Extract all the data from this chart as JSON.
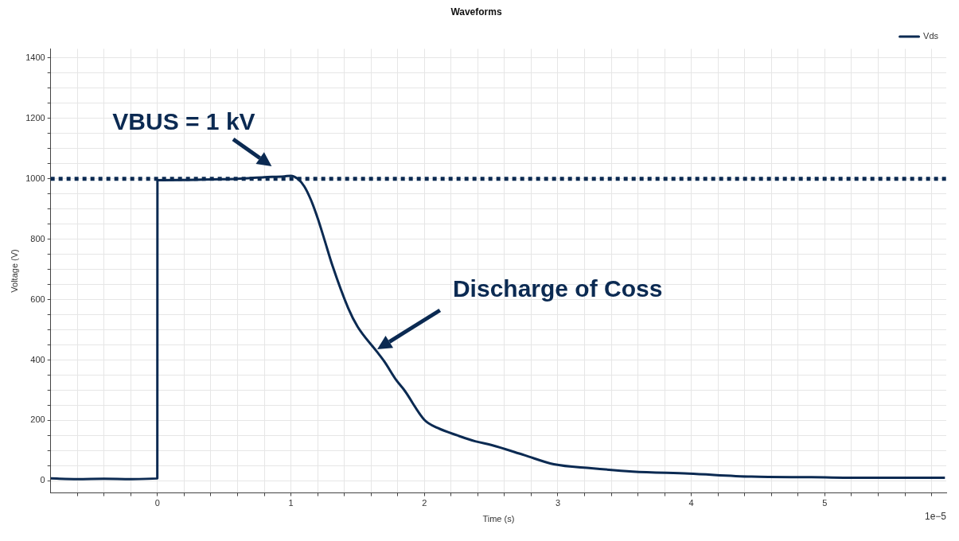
{
  "chart_data": {
    "type": "line",
    "title": "Waveforms",
    "xlabel": "Time (s)",
    "ylabel": "Voltage (V)",
    "series": [
      {
        "name": "Vds",
        "color": "#0b2a52",
        "x": [
          -0.8,
          -0.6,
          -0.4,
          -0.2,
          -0.001,
          0,
          0.2,
          0.4,
          0.6,
          0.8,
          0.95,
          1.0,
          1.05,
          1.1,
          1.15,
          1.2,
          1.25,
          1.31,
          1.43,
          1.5,
          1.64,
          1.7,
          1.79,
          1.85,
          2.0,
          2.1,
          2.25,
          2.38,
          2.5,
          2.75,
          2.97,
          3.25,
          3.56,
          3.98,
          4.45,
          4.9,
          5.34,
          5.9
        ],
        "values": [
          8,
          6,
          7,
          6,
          8,
          995,
          996,
          998,
          1000,
          1005,
          1008,
          1010,
          1000,
          975,
          930,
          870,
          800,
          714,
          571,
          510,
          430,
          395,
          333,
          300,
          202,
          175,
          150,
          131,
          119,
          85,
          55,
          42,
          31,
          24,
          14,
          12,
          10,
          10
        ]
      }
    ],
    "xlim": [
      -0.8,
      5.91
    ],
    "ylim": [
      -40,
      1430
    ],
    "xticks": [
      {
        "value": -0.6,
        "label": null
      },
      {
        "value": -0.4,
        "label": null
      },
      {
        "value": -0.2,
        "label": null
      },
      0,
      {
        "value": 0.2,
        "label": null
      },
      {
        "value": 0.4,
        "label": null
      },
      {
        "value": 0.6,
        "label": null
      },
      {
        "value": 0.8,
        "label": null
      },
      1,
      {
        "value": 1.2,
        "label": null
      },
      {
        "value": 1.4,
        "label": null
      },
      {
        "value": 1.6,
        "label": null
      },
      {
        "value": 1.8,
        "label": null
      },
      2,
      {
        "value": 2.2,
        "label": null
      },
      {
        "value": 2.4,
        "label": null
      },
      {
        "value": 2.6,
        "label": null
      },
      {
        "value": 2.8,
        "label": null
      },
      3,
      {
        "value": 3.2,
        "label": null
      },
      {
        "value": 3.4,
        "label": null
      },
      {
        "value": 3.6,
        "label": null
      },
      {
        "value": 3.8,
        "label": null
      },
      4,
      {
        "value": 4.2,
        "label": null
      },
      {
        "value": 4.4,
        "label": null
      },
      {
        "value": 4.6,
        "label": null
      },
      {
        "value": 4.8,
        "label": null
      },
      5,
      {
        "value": 5.2,
        "label": null
      },
      {
        "value": 5.4,
        "label": null
      },
      {
        "value": 5.6,
        "label": null
      },
      {
        "value": 5.8,
        "label": null
      }
    ],
    "yticks": [
      0,
      {
        "value": 50,
        "label": null
      },
      {
        "value": 100,
        "label": null
      },
      {
        "value": 150,
        "label": null
      },
      200,
      {
        "value": 250,
        "label": null
      },
      {
        "value": 300,
        "label": null
      },
      {
        "value": 350,
        "label": null
      },
      400,
      {
        "value": 450,
        "label": null
      },
      {
        "value": 500,
        "label": null
      },
      {
        "value": 550,
        "label": null
      },
      600,
      {
        "value": 650,
        "label": null
      },
      {
        "value": 700,
        "label": null
      },
      {
        "value": 750,
        "label": null
      },
      800,
      {
        "value": 850,
        "label": null
      },
      {
        "value": 900,
        "label": null
      },
      {
        "value": 950,
        "label": null
      },
      1000,
      {
        "value": 1050,
        "label": null
      },
      {
        "value": 1100,
        "label": null
      },
      {
        "value": 1150,
        "label": null
      },
      1200,
      {
        "value": 1250,
        "label": null
      },
      {
        "value": 1300,
        "label": null
      },
      {
        "value": 1350,
        "label": null
      },
      1400
    ],
    "ref_lines": [
      {
        "axis": "y",
        "value": 1000,
        "color": "#0b2a52",
        "line_style": "dotted"
      }
    ],
    "annotations": [
      "VBUS = 1 kV",
      "Discharge of Coss",
      "1e−5"
    ],
    "grid": true,
    "legend": "top right",
    "marker": "none",
    "line_style": "solid"
  }
}
